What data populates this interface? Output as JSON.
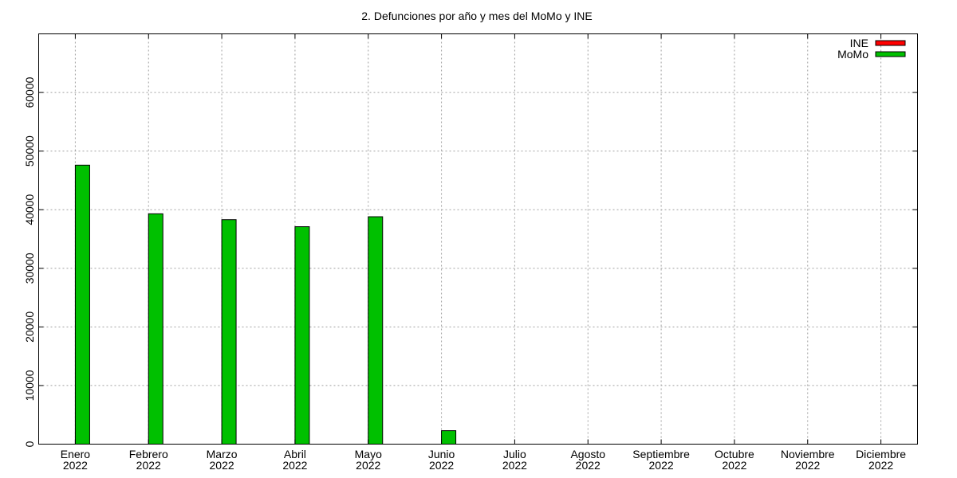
{
  "chart_data": {
    "type": "bar",
    "title": "2. Defunciones por año y mes del MoMo y INE",
    "categories": [
      [
        "Enero",
        "2022"
      ],
      [
        "Febrero",
        "2022"
      ],
      [
        "Marzo",
        "2022"
      ],
      [
        "Abril",
        "2022"
      ],
      [
        "Mayo",
        "2022"
      ],
      [
        "Junio",
        "2022"
      ],
      [
        "Julio",
        "2022"
      ],
      [
        "Agosto",
        "2022"
      ],
      [
        "Septiembre",
        "2022"
      ],
      [
        "Octubre",
        "2022"
      ],
      [
        "Noviembre",
        "2022"
      ],
      [
        "Diciembre",
        "2022"
      ]
    ],
    "series": [
      {
        "name": "INE",
        "color": "#ff0000",
        "values": [
          null,
          null,
          null,
          null,
          null,
          null,
          null,
          null,
          null,
          null,
          null,
          null
        ]
      },
      {
        "name": "MoMo",
        "color": "#00c000",
        "values": [
          47600,
          39300,
          38300,
          37100,
          38800,
          2300,
          null,
          null,
          null,
          null,
          null,
          null
        ]
      }
    ],
    "ylim": [
      0,
      70000
    ],
    "yticks": [
      0,
      10000,
      20000,
      30000,
      40000,
      50000,
      60000
    ],
    "grid": true,
    "legend": "top-right",
    "xlabel": "",
    "ylabel": ""
  }
}
